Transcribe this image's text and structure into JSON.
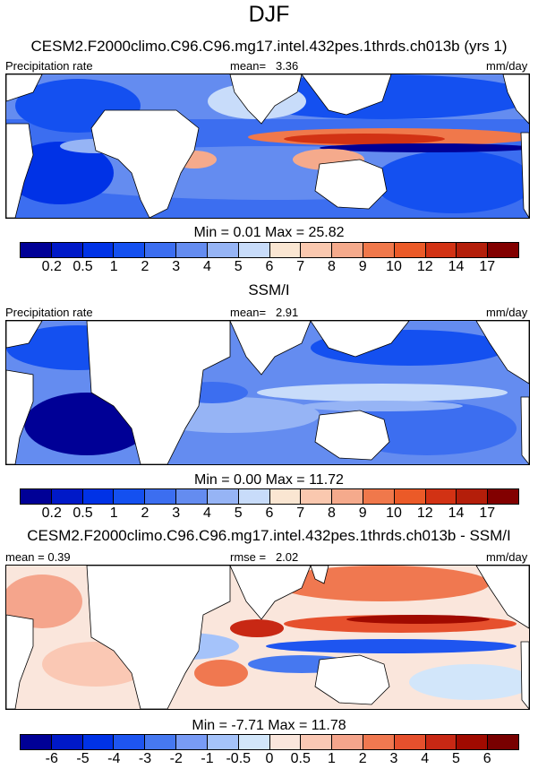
{
  "season": "DJF",
  "panels": [
    {
      "title": "CESM2.F2000climo.C96.C96.mg17.intel.432pes.1thrds.ch013b (yrs 1)",
      "left_label": "Precipitation rate",
      "stat_label": "mean=",
      "stat_value": "3.36",
      "units": "mm/day",
      "min_max": "Min =   0.01 Max =  25.82",
      "colorbar": {
        "colors": [
          "#000096",
          "#0019c8",
          "#0032e6",
          "#1450f0",
          "#3c6ef0",
          "#648cf0",
          "#96b4f5",
          "#c8dcfa",
          "#fae6d2",
          "#fac8af",
          "#f5aa8c",
          "#f0784b",
          "#eb5a28",
          "#d23214",
          "#b41e0a",
          "#820000"
        ],
        "labels": [
          "0.2",
          "0.5",
          "1",
          "2",
          "3",
          "4",
          "5",
          "6",
          "7",
          "8",
          "9",
          "10",
          "12",
          "14",
          "17"
        ]
      }
    },
    {
      "title": "SSM/I",
      "left_label": "Precipitation rate",
      "stat_label": "mean=",
      "stat_value": "2.91",
      "units": "mm/day",
      "min_max": "Min =   0.00 Max =  11.72",
      "colorbar": {
        "colors": [
          "#000096",
          "#0019c8",
          "#0032e6",
          "#1450f0",
          "#3c6ef0",
          "#648cf0",
          "#96b4f5",
          "#c8dcfa",
          "#fae6d2",
          "#fac8af",
          "#f5aa8c",
          "#f0784b",
          "#eb5a28",
          "#d23214",
          "#b41e0a",
          "#820000"
        ],
        "labels": [
          "0.2",
          "0.5",
          "1",
          "2",
          "3",
          "4",
          "5",
          "6",
          "7",
          "8",
          "9",
          "10",
          "12",
          "14",
          "17"
        ]
      }
    },
    {
      "title": "CESM2.F2000climo.C96.C96.mg17.intel.432pes.1thrds.ch013b - SSM/I",
      "left_label": "mean =   0.39",
      "stat_label": "rmse =",
      "stat_value": "2.02",
      "units": "mm/day",
      "min_max": "Min =  -7.71 Max =  11.78",
      "colorbar": {
        "colors": [
          "#000096",
          "#0019c8",
          "#0032e6",
          "#1e55f0",
          "#4678f0",
          "#789bf5",
          "#a5c3fa",
          "#d2e6fa",
          "#fae6dc",
          "#fac8b4",
          "#f5a58c",
          "#f07850",
          "#e6502d",
          "#c82814",
          "#a00a00",
          "#780000"
        ],
        "labels": [
          "-6",
          "-5",
          "-4",
          "-3",
          "-2",
          "-1",
          "-0.5",
          "0",
          "0.5",
          "1",
          "2",
          "3",
          "4",
          "5",
          "6"
        ]
      }
    }
  ]
}
